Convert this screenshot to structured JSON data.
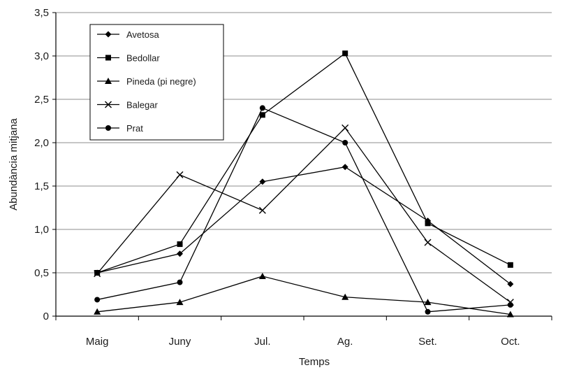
{
  "chart_data": {
    "type": "line",
    "title": "",
    "xlabel": "Temps",
    "ylabel": "Abundància mitjana",
    "categories": [
      "Maig",
      "Juny",
      "Jul.",
      "Ag.",
      "Set.",
      "Oct."
    ],
    "ylim": [
      0,
      3.5
    ],
    "yticks": [
      0,
      0.5,
      1.0,
      1.5,
      2.0,
      2.5,
      3.0,
      3.5
    ],
    "ytick_labels": [
      "0",
      "0,5",
      "1,0",
      "1,5",
      "2,0",
      "2,5",
      "3,0",
      "3,5"
    ],
    "grid": "horizontal",
    "legend_position": "top-left",
    "series": [
      {
        "name": "Avetosa",
        "marker": "diamond",
        "values": [
          0.5,
          0.72,
          1.55,
          1.72,
          1.1,
          0.37
        ]
      },
      {
        "name": "Bedollar",
        "marker": "square",
        "values": [
          0.5,
          0.83,
          2.32,
          3.03,
          1.07,
          0.59
        ]
      },
      {
        "name": "Pineda (pi negre)",
        "marker": "triangle",
        "values": [
          0.05,
          0.16,
          0.46,
          0.22,
          0.16,
          0.02
        ]
      },
      {
        "name": "Balegar",
        "marker": "x",
        "values": [
          0.49,
          1.63,
          1.22,
          2.17,
          0.85,
          0.16
        ]
      },
      {
        "name": "Prat",
        "marker": "circle",
        "values": [
          0.19,
          0.39,
          2.4,
          2.0,
          0.05,
          0.13
        ]
      }
    ],
    "colors": {
      "line": "#000000",
      "grid": "#8c8c8c",
      "axis": "#000000"
    }
  }
}
